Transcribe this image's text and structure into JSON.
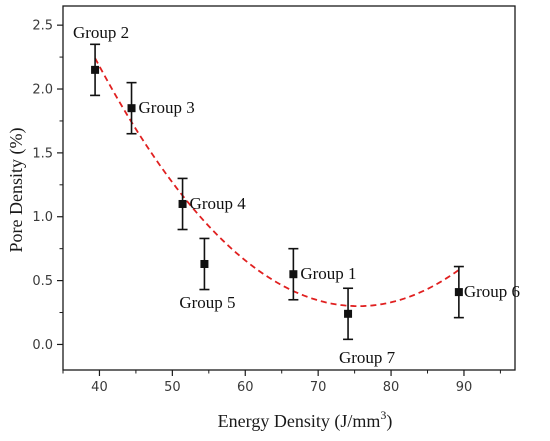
{
  "chart_data": {
    "type": "scatter",
    "xlabel": "Energy Density (J/mm",
    "xlabel_superscript": "3",
    "xlabel_suffix": ")",
    "ylabel": "Pore Density (%)",
    "xlim": [
      35,
      97
    ],
    "ylim": [
      -0.2,
      2.65
    ],
    "x_ticks": [
      40,
      50,
      60,
      70,
      80,
      90
    ],
    "x_tick_labels": [
      "40",
      "50",
      "60",
      "70",
      "80",
      "90"
    ],
    "y_ticks": [
      0.0,
      0.5,
      1.0,
      1.5,
      2.0,
      2.5
    ],
    "y_tick_labels": [
      "0.0",
      "0.5",
      "1.0",
      "1.5",
      "2.0",
      "2.5"
    ],
    "grid": false,
    "points": [
      {
        "label": "Group 2",
        "x": 39.4,
        "y": 2.15,
        "err": 0.2
      },
      {
        "label": "Group 3",
        "x": 44.4,
        "y": 1.85,
        "err": 0.2
      },
      {
        "label": "Group 4",
        "x": 51.4,
        "y": 1.1,
        "err": 0.2
      },
      {
        "label": "Group 5",
        "x": 54.4,
        "y": 0.63,
        "err": 0.2
      },
      {
        "label": "Group 1",
        "x": 66.6,
        "y": 0.55,
        "err": 0.2
      },
      {
        "label": "Group 7",
        "x": 74.1,
        "y": 0.24,
        "err": 0.2
      },
      {
        "label": "Group 6",
        "x": 89.3,
        "y": 0.41,
        "err": 0.2
      }
    ],
    "fit_curve": {
      "style": "dashed",
      "color": "#e02020",
      "x_range": [
        39.4,
        89.3
      ],
      "vertex_x": 75.5,
      "vertex_y": 0.3,
      "a": 0.00149
    },
    "marker_color": "#111111"
  }
}
